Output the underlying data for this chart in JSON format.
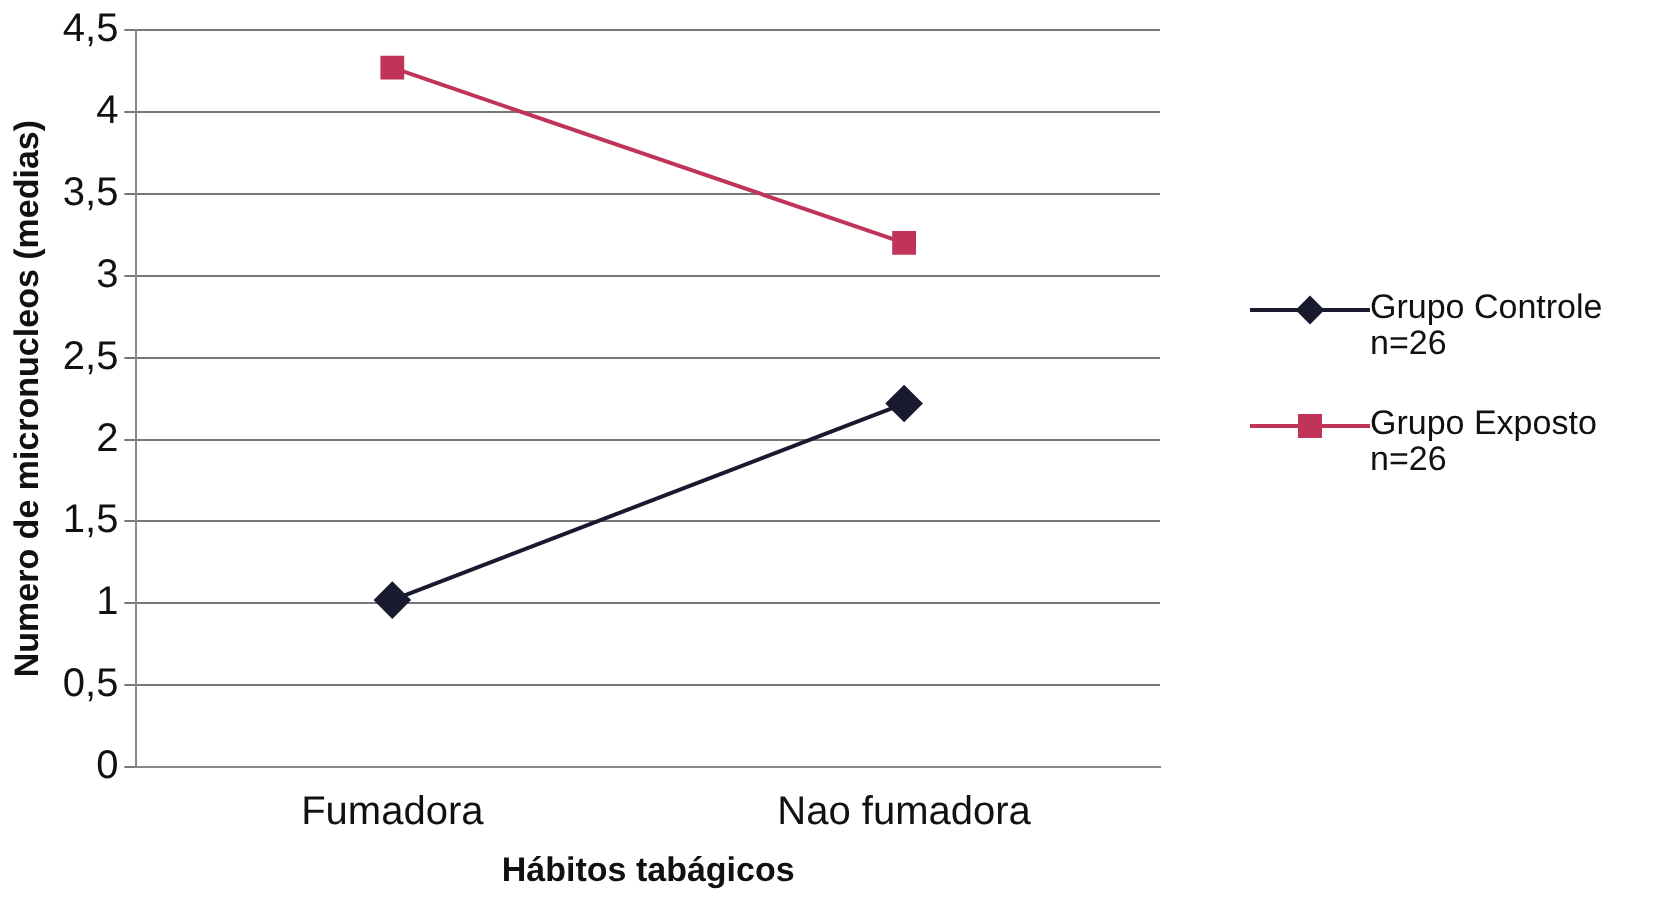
{
  "chart_data": {
    "type": "line",
    "xlabel": "Hábitos tabágicos",
    "ylabel": "Numero de micronucleos (medias)",
    "categories": [
      "Fumadora",
      "Nao fumadora"
    ],
    "series": [
      {
        "name": "Grupo Controle\nn=26",
        "color": "#1a1a2e",
        "marker": "diamond",
        "values": [
          1.02,
          2.22
        ]
      },
      {
        "name": "Grupo Exposto\nn=26",
        "color": "#c0345a",
        "marker": "square",
        "values": [
          4.27,
          3.2
        ]
      }
    ],
    "ylim": [
      0,
      4.5
    ],
    "yticks": [
      0,
      {
        "value": 0.5,
        "label": "0,5"
      },
      1,
      {
        "value": 1.5,
        "label": "1,5"
      },
      2,
      {
        "value": 2.5,
        "label": "2,5"
      },
      3,
      {
        "value": 3.5,
        "label": "3,5"
      },
      4,
      {
        "value": 4.5,
        "label": "4,5"
      }
    ],
    "grid": "y",
    "legend": "right",
    "line_style": "solid"
  }
}
